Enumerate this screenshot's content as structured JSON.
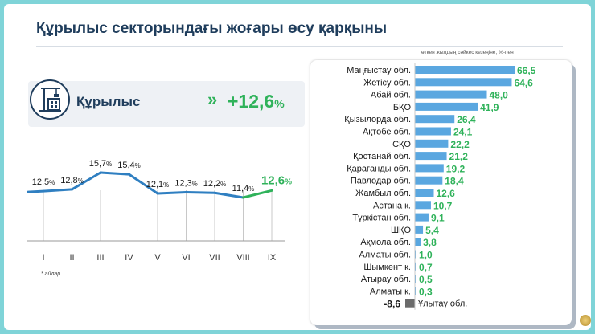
{
  "header": {
    "title": "Құрылыс секторындағы жоғары өсу қарқыны"
  },
  "kpi": {
    "label": "Құрылыс",
    "chevrons": "»",
    "value": "+12,6",
    "unit": "%",
    "icon": "building-crane-icon"
  },
  "footnote": "* айлар",
  "bar_note": "өткен жылдың сәйкес кезеңіне, %-пен",
  "colors": {
    "navy": "#1f3d5c",
    "green": "#2fb25a",
    "line_blue": "#2f7fc1",
    "bar_blue": "#5aa7e0",
    "negative": "#6b6b6b",
    "text": "#1a1a1a"
  },
  "chart_data": [
    {
      "type": "line",
      "title": "",
      "categories": [
        "I",
        "II",
        "III",
        "IV",
        "V",
        "VI",
        "VII",
        "VIII",
        "IX"
      ],
      "values": [
        12.5,
        12.8,
        15.7,
        15.4,
        12.1,
        12.3,
        12.2,
        11.4,
        12.6
      ],
      "value_labels": [
        "12,5",
        "12,8",
        "15,7",
        "15,4",
        "12,1",
        "12,3",
        "12,2",
        "11,4",
        "12,6"
      ],
      "unit": "%",
      "highlight_last": true,
      "ylim": [
        0,
        16
      ]
    },
    {
      "type": "bar",
      "orientation": "horizontal",
      "categories": [
        "Маңғыстау обл.",
        "Жетісу обл.",
        "Абай обл.",
        "БҚО",
        "Қызылорда обл.",
        "Ақтөбе обл.",
        "СҚО",
        "Қостанай обл.",
        "Қарағанды обл.",
        "Павлодар обл.",
        "Жамбыл обл.",
        "Астана қ.",
        "Түркістан обл.",
        "ШҚО",
        "Ақмола обл.",
        "Алматы обл.",
        "Шымкент қ.",
        "Атырау обл.",
        "Алматы қ.",
        "Ұлытау обл."
      ],
      "values": [
        66.5,
        64.6,
        48.0,
        41.9,
        26.4,
        24.1,
        22.2,
        21.2,
        19.2,
        18.4,
        12.6,
        10.7,
        9.1,
        5.4,
        3.8,
        1.0,
        0.7,
        0.5,
        0.3,
        -8.6
      ],
      "value_labels": [
        "66,5",
        "64,6",
        "48,0",
        "41,9",
        "26,4",
        "24,1",
        "22,2",
        "21,2",
        "19,2",
        "18,4",
        "12,6",
        "10,7",
        "9,1",
        "5,4",
        "3,8",
        "1,0",
        "0,7",
        "0,5",
        "0,3",
        "-8,6"
      ],
      "note": "өткен жылдың сәйкес кезеңіне, %-пен"
    }
  ]
}
